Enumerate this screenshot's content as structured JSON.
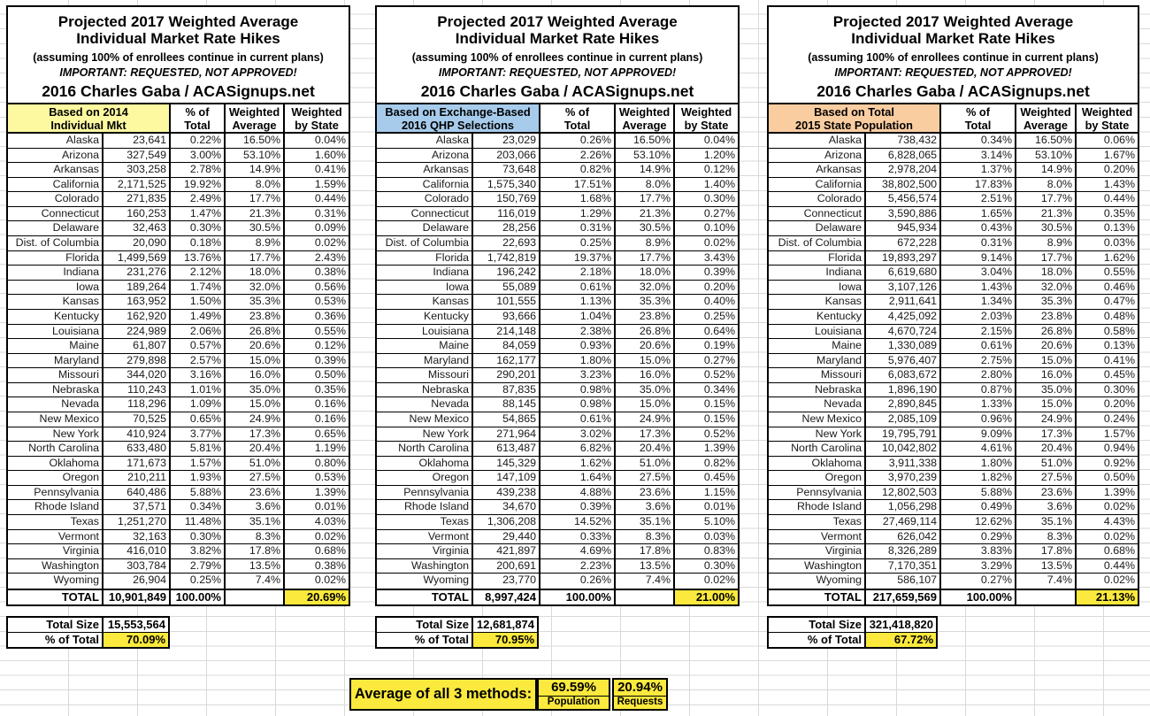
{
  "shared": {
    "title_line1": "Projected 2017 Weighted Average",
    "title_line2": "Individual Market Rate Hikes",
    "title_line3": "(assuming 100% of enrollees continue in current plans)",
    "title_line4": "IMPORTANT: REQUESTED, NOT APPROVED!",
    "title_line5": "2016 Charles Gaba / ACASignups.net",
    "col_pct_line1": "% of",
    "col_pct_line2": "Total",
    "col_wavg_line1": "Weighted",
    "col_wavg_line2": "Average",
    "col_wbs_line1": "Weighted",
    "col_wbs_line2": "by State",
    "total_label": "TOTAL",
    "total_size_label": "Total Size",
    "pct_of_total_label": "% of Total"
  },
  "colors": {
    "basis_2014_yellow": "#FCF9A0",
    "basis_qhp_blue": "#A7CBEB",
    "basis_population_peach": "#FACDA1",
    "highlight_yellow": "#FBE93D"
  },
  "tables": [
    {
      "basis_line1": "Based on 2014",
      "basis_line2": "Individual Mkt",
      "rows": [
        [
          "Alaska",
          "23,641",
          "0.22%",
          "16.50%",
          "0.04%"
        ],
        [
          "Arizona",
          "327,549",
          "3.00%",
          "53.10%",
          "1.60%"
        ],
        [
          "Arkansas",
          "303,258",
          "2.78%",
          "14.9%",
          "0.41%"
        ],
        [
          "California",
          "2,171,525",
          "19.92%",
          "8.0%",
          "1.59%"
        ],
        [
          "Colorado",
          "271,835",
          "2.49%",
          "17.7%",
          "0.44%"
        ],
        [
          "Connecticut",
          "160,253",
          "1.47%",
          "21.3%",
          "0.31%"
        ],
        [
          "Delaware",
          "32,463",
          "0.30%",
          "30.5%",
          "0.09%"
        ],
        [
          "Dist. of Columbia",
          "20,090",
          "0.18%",
          "8.9%",
          "0.02%"
        ],
        [
          "Florida",
          "1,499,569",
          "13.76%",
          "17.7%",
          "2.43%"
        ],
        [
          "Indiana",
          "231,276",
          "2.12%",
          "18.0%",
          "0.38%"
        ],
        [
          "Iowa",
          "189,264",
          "1.74%",
          "32.0%",
          "0.56%"
        ],
        [
          "Kansas",
          "163,952",
          "1.50%",
          "35.3%",
          "0.53%"
        ],
        [
          "Kentucky",
          "162,920",
          "1.49%",
          "23.8%",
          "0.36%"
        ],
        [
          "Louisiana",
          "224,989",
          "2.06%",
          "26.8%",
          "0.55%"
        ],
        [
          "Maine",
          "61,807",
          "0.57%",
          "20.6%",
          "0.12%"
        ],
        [
          "Maryland",
          "279,898",
          "2.57%",
          "15.0%",
          "0.39%"
        ],
        [
          "Missouri",
          "344,020",
          "3.16%",
          "16.0%",
          "0.50%"
        ],
        [
          "Nebraska",
          "110,243",
          "1.01%",
          "35.0%",
          "0.35%"
        ],
        [
          "Nevada",
          "118,296",
          "1.09%",
          "15.0%",
          "0.16%"
        ],
        [
          "New Mexico",
          "70,525",
          "0.65%",
          "24.9%",
          "0.16%"
        ],
        [
          "New York",
          "410,924",
          "3.77%",
          "17.3%",
          "0.65%"
        ],
        [
          "North Carolina",
          "633,480",
          "5.81%",
          "20.4%",
          "1.19%"
        ],
        [
          "Oklahoma",
          "171,673",
          "1.57%",
          "51.0%",
          "0.80%"
        ],
        [
          "Oregon",
          "210,211",
          "1.93%",
          "27.5%",
          "0.53%"
        ],
        [
          "Pennsylvania",
          "640,486",
          "5.88%",
          "23.6%",
          "1.39%"
        ],
        [
          "Rhode Island",
          "37,571",
          "0.34%",
          "3.6%",
          "0.01%"
        ],
        [
          "Texas",
          "1,251,270",
          "11.48%",
          "35.1%",
          "4.03%"
        ],
        [
          "Vermont",
          "32,163",
          "0.30%",
          "8.3%",
          "0.02%"
        ],
        [
          "Virginia",
          "416,010",
          "3.82%",
          "17.8%",
          "0.68%"
        ],
        [
          "Washington",
          "303,784",
          "2.79%",
          "13.5%",
          "0.38%"
        ],
        [
          "Wyoming",
          "26,904",
          "0.25%",
          "7.4%",
          "0.02%"
        ]
      ],
      "total_value": "10,901,849",
      "total_pct": "100.00%",
      "total_weighted_by_state": "20.69%",
      "total_size_value": "15,553,564",
      "pct_of_total_value": "70.09%"
    },
    {
      "basis_line1": "Based on Exchange-Based",
      "basis_line2": "2016 QHP Selections",
      "rows": [
        [
          "Alaska",
          "23,029",
          "0.26%",
          "16.50%",
          "0.04%"
        ],
        [
          "Arizona",
          "203,066",
          "2.26%",
          "53.10%",
          "1.20%"
        ],
        [
          "Arkansas",
          "73,648",
          "0.82%",
          "14.9%",
          "0.12%"
        ],
        [
          "California",
          "1,575,340",
          "17.51%",
          "8.0%",
          "1.40%"
        ],
        [
          "Colorado",
          "150,769",
          "1.68%",
          "17.7%",
          "0.30%"
        ],
        [
          "Connecticut",
          "116,019",
          "1.29%",
          "21.3%",
          "0.27%"
        ],
        [
          "Delaware",
          "28,256",
          "0.31%",
          "30.5%",
          "0.10%"
        ],
        [
          "Dist. of Columbia",
          "22,693",
          "0.25%",
          "8.9%",
          "0.02%"
        ],
        [
          "Florida",
          "1,742,819",
          "19.37%",
          "17.7%",
          "3.43%"
        ],
        [
          "Indiana",
          "196,242",
          "2.18%",
          "18.0%",
          "0.39%"
        ],
        [
          "Iowa",
          "55,089",
          "0.61%",
          "32.0%",
          "0.20%"
        ],
        [
          "Kansas",
          "101,555",
          "1.13%",
          "35.3%",
          "0.40%"
        ],
        [
          "Kentucky",
          "93,666",
          "1.04%",
          "23.8%",
          "0.25%"
        ],
        [
          "Louisiana",
          "214,148",
          "2.38%",
          "26.8%",
          "0.64%"
        ],
        [
          "Maine",
          "84,059",
          "0.93%",
          "20.6%",
          "0.19%"
        ],
        [
          "Maryland",
          "162,177",
          "1.80%",
          "15.0%",
          "0.27%"
        ],
        [
          "Missouri",
          "290,201",
          "3.23%",
          "16.0%",
          "0.52%"
        ],
        [
          "Nebraska",
          "87,835",
          "0.98%",
          "35.0%",
          "0.34%"
        ],
        [
          "Nevada",
          "88,145",
          "0.98%",
          "15.0%",
          "0.15%"
        ],
        [
          "New Mexico",
          "54,865",
          "0.61%",
          "24.9%",
          "0.15%"
        ],
        [
          "New York",
          "271,964",
          "3.02%",
          "17.3%",
          "0.52%"
        ],
        [
          "North Carolina",
          "613,487",
          "6.82%",
          "20.4%",
          "1.39%"
        ],
        [
          "Oklahoma",
          "145,329",
          "1.62%",
          "51.0%",
          "0.82%"
        ],
        [
          "Oregon",
          "147,109",
          "1.64%",
          "27.5%",
          "0.45%"
        ],
        [
          "Pennsylvania",
          "439,238",
          "4.88%",
          "23.6%",
          "1.15%"
        ],
        [
          "Rhode Island",
          "34,670",
          "0.39%",
          "3.6%",
          "0.01%"
        ],
        [
          "Texas",
          "1,306,208",
          "14.52%",
          "35.1%",
          "5.10%"
        ],
        [
          "Vermont",
          "29,440",
          "0.33%",
          "8.3%",
          "0.03%"
        ],
        [
          "Virginia",
          "421,897",
          "4.69%",
          "17.8%",
          "0.83%"
        ],
        [
          "Washington",
          "200,691",
          "2.23%",
          "13.5%",
          "0.30%"
        ],
        [
          "Wyoming",
          "23,770",
          "0.26%",
          "7.4%",
          "0.02%"
        ]
      ],
      "total_value": "8,997,424",
      "total_pct": "100.00%",
      "total_weighted_by_state": "21.00%",
      "total_size_value": "12,681,874",
      "pct_of_total_value": "70.95%"
    },
    {
      "basis_line1": "Based on Total",
      "basis_line2": "2015 State Population",
      "rows": [
        [
          "Alaska",
          "738,432",
          "0.34%",
          "16.50%",
          "0.06%"
        ],
        [
          "Arizona",
          "6,828,065",
          "3.14%",
          "53.10%",
          "1.67%"
        ],
        [
          "Arkansas",
          "2,978,204",
          "1.37%",
          "14.9%",
          "0.20%"
        ],
        [
          "California",
          "38,802,500",
          "17.83%",
          "8.0%",
          "1.43%"
        ],
        [
          "Colorado",
          "5,456,574",
          "2.51%",
          "17.7%",
          "0.44%"
        ],
        [
          "Connecticut",
          "3,590,886",
          "1.65%",
          "21.3%",
          "0.35%"
        ],
        [
          "Delaware",
          "945,934",
          "0.43%",
          "30.5%",
          "0.13%"
        ],
        [
          "Dist. of Columbia",
          "672,228",
          "0.31%",
          "8.9%",
          "0.03%"
        ],
        [
          "Florida",
          "19,893,297",
          "9.14%",
          "17.7%",
          "1.62%"
        ],
        [
          "Indiana",
          "6,619,680",
          "3.04%",
          "18.0%",
          "0.55%"
        ],
        [
          "Iowa",
          "3,107,126",
          "1.43%",
          "32.0%",
          "0.46%"
        ],
        [
          "Kansas",
          "2,911,641",
          "1.34%",
          "35.3%",
          "0.47%"
        ],
        [
          "Kentucky",
          "4,425,092",
          "2.03%",
          "23.8%",
          "0.48%"
        ],
        [
          "Louisiana",
          "4,670,724",
          "2.15%",
          "26.8%",
          "0.58%"
        ],
        [
          "Maine",
          "1,330,089",
          "0.61%",
          "20.6%",
          "0.13%"
        ],
        [
          "Maryland",
          "5,976,407",
          "2.75%",
          "15.0%",
          "0.41%"
        ],
        [
          "Missouri",
          "6,083,672",
          "2.80%",
          "16.0%",
          "0.45%"
        ],
        [
          "Nebraska",
          "1,896,190",
          "0.87%",
          "35.0%",
          "0.30%"
        ],
        [
          "Nevada",
          "2,890,845",
          "1.33%",
          "15.0%",
          "0.20%"
        ],
        [
          "New Mexico",
          "2,085,109",
          "0.96%",
          "24.9%",
          "0.24%"
        ],
        [
          "New York",
          "19,795,791",
          "9.09%",
          "17.3%",
          "1.57%"
        ],
        [
          "North Carolina",
          "10,042,802",
          "4.61%",
          "20.4%",
          "0.94%"
        ],
        [
          "Oklahoma",
          "3,911,338",
          "1.80%",
          "51.0%",
          "0.92%"
        ],
        [
          "Oregon",
          "3,970,239",
          "1.82%",
          "27.5%",
          "0.50%"
        ],
        [
          "Pennsylvania",
          "12,802,503",
          "5.88%",
          "23.6%",
          "1.39%"
        ],
        [
          "Rhode Island",
          "1,056,298",
          "0.49%",
          "3.6%",
          "0.02%"
        ],
        [
          "Texas",
          "27,469,114",
          "12.62%",
          "35.1%",
          "4.43%"
        ],
        [
          "Vermont",
          "626,042",
          "0.29%",
          "8.3%",
          "0.02%"
        ],
        [
          "Virginia",
          "8,326,289",
          "3.83%",
          "17.8%",
          "0.68%"
        ],
        [
          "Washington",
          "7,170,351",
          "3.29%",
          "13.5%",
          "0.44%"
        ],
        [
          "Wyoming",
          "586,107",
          "0.27%",
          "7.4%",
          "0.02%"
        ]
      ],
      "total_value": "217,659,569",
      "total_pct": "100.00%",
      "total_weighted_by_state": "21.13%",
      "total_size_value": "321,418,820",
      "pct_of_total_value": "67.72%"
    }
  ],
  "average_section": {
    "label": "Average of all 3 methods:",
    "population_pct": "69.59%",
    "population_label": "Population",
    "requests_pct": "20.94%",
    "requests_label": "Requests"
  }
}
